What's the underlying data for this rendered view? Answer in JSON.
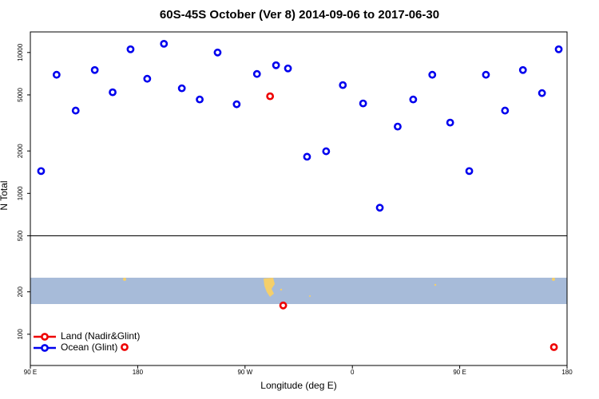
{
  "chart_data": {
    "type": "scatter",
    "title": "60S-45S October (Ver 8)   2014-09-06 to 2017-06-30",
    "xlabel": "Longitude (deg E)",
    "ylabel": "N Total",
    "xlim": [
      90,
      540
    ],
    "xticks": [
      {
        "value": 90,
        "label": "90 E"
      },
      {
        "value": 180,
        "label": "180"
      },
      {
        "value": 270,
        "label": "90 W"
      },
      {
        "value": 360,
        "label": "0"
      },
      {
        "value": 450,
        "label": "90 E"
      },
      {
        "value": 540,
        "label": "180"
      }
    ],
    "ylim": [
      60,
      14000
    ],
    "ylog": true,
    "yticks": [
      100,
      200,
      500,
      1000,
      2000,
      5000,
      10000
    ],
    "legend": "bottom-left",
    "series": [
      {
        "name": "Land (Nadir&Glint)",
        "color": "#ee0000",
        "x": [
          169,
          291,
          302,
          529
        ],
        "values": [
          81,
          4890,
          160,
          81
        ]
      },
      {
        "name": "Ocean (Glint)",
        "color": "#0000ee",
        "x": [
          99,
          112,
          128,
          144,
          159,
          174,
          188,
          202,
          217,
          232,
          247,
          263,
          280,
          296,
          306,
          322,
          338,
          352,
          369,
          383,
          398,
          411,
          427,
          442,
          458,
          472,
          488,
          503,
          519,
          533
        ],
        "values": [
          1440,
          6950,
          3870,
          7510,
          5220,
          10540,
          6510,
          11530,
          5570,
          4640,
          10000,
          4290,
          7040,
          8120,
          7710,
          1820,
          1990,
          5870,
          4350,
          791,
          2980,
          4640,
          6950,
          3180,
          1440,
          6950,
          3870,
          7510,
          5150,
          10540
        ]
      }
    ]
  }
}
